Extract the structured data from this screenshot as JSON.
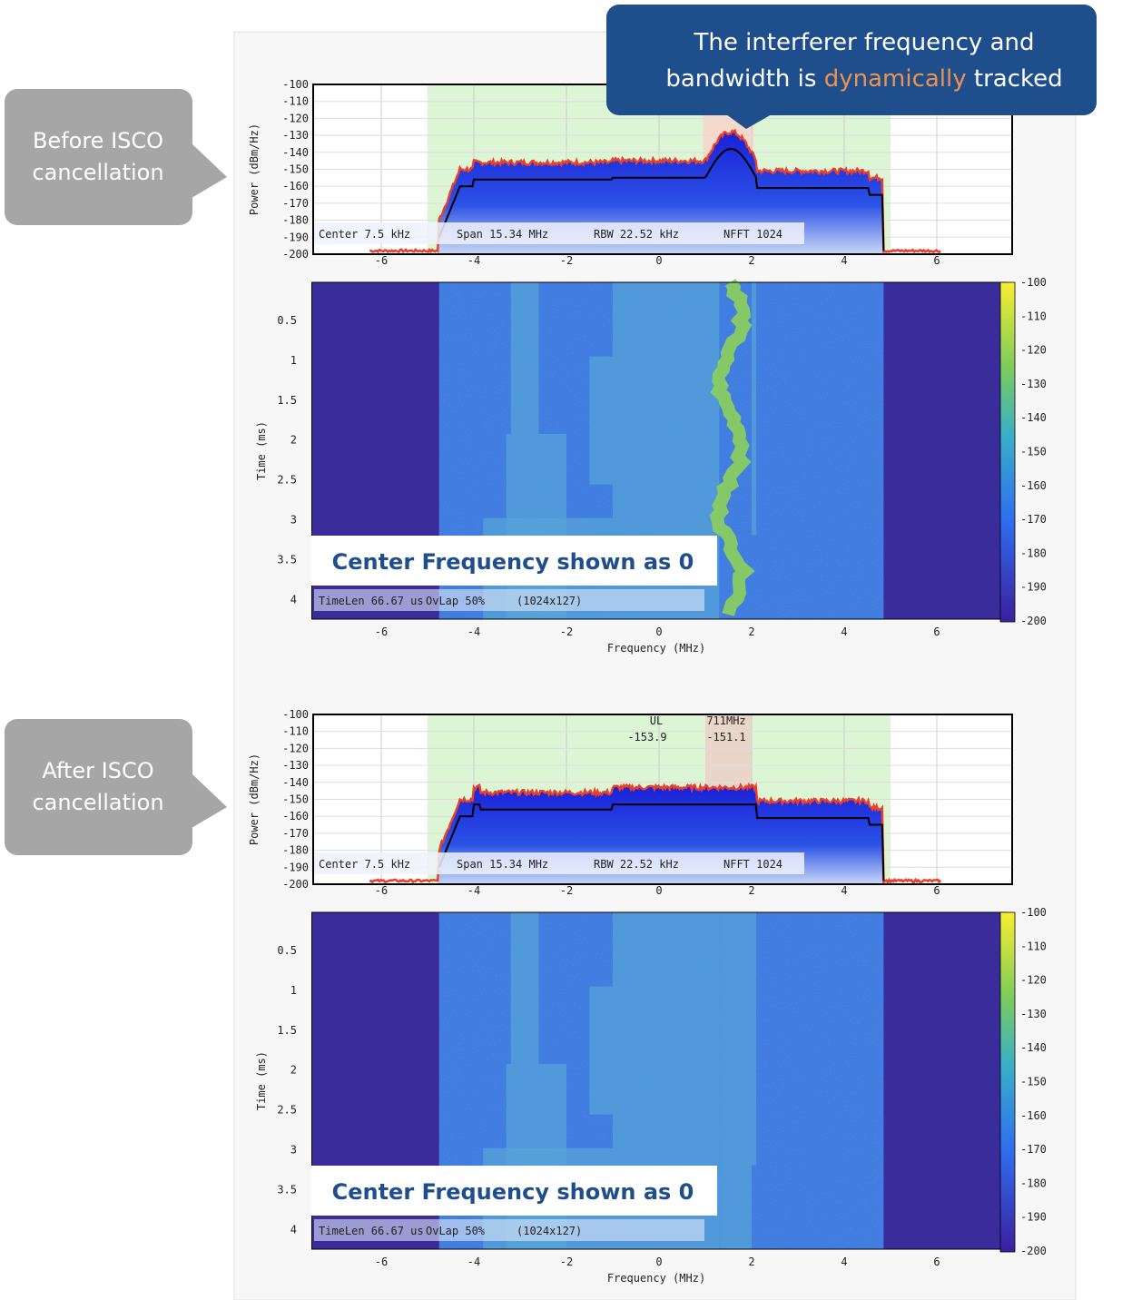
{
  "callout": {
    "line1": "The interferer frequency and",
    "line2_start": "bandwidth is",
    "highlight": "dynamically",
    "line2_end": "tracked"
  },
  "panels": [
    {
      "label": [
        "Before ISCO",
        "cancellation"
      ],
      "spectrum": {
        "y_label": "Power (dBm/Hz)",
        "y_ticks": [
          "-100",
          "-110",
          "-120",
          "-130",
          "-140",
          "-150",
          "-160",
          "-170",
          "-180",
          "-190",
          "-200"
        ],
        "x_ticks": [
          "-6",
          "-4",
          "-2",
          "0",
          "2",
          "4",
          "6"
        ],
        "info": [
          "Center 7.5 kHz",
          "Span 15.34 MHz",
          "RBW 22.52 kHz",
          "NFFT 1024"
        ]
      },
      "waterfall": {
        "y_label": "Time (ms)",
        "y_ticks": [
          "0.5",
          "1",
          "1.5",
          "2",
          "2.5",
          "3",
          "3.5",
          "4"
        ],
        "x_ticks": [
          "-6",
          "-4",
          "-2",
          "0",
          "2",
          "4",
          "6"
        ],
        "x_label": "Frequency (MHz)",
        "colorbar_ticks": [
          "-100",
          "-110",
          "-120",
          "-130",
          "-140",
          "-150",
          "-160",
          "-170",
          "-180",
          "-190",
          "-200"
        ],
        "info": [
          "TimeLen 66.67 us",
          "OvLap 50%",
          "(1024x127)"
        ],
        "overlay": "Center Frequency shown as 0"
      }
    },
    {
      "label": [
        "After ISCO",
        "cancellation"
      ],
      "spectrum": {
        "y_label": "Power (dBm/Hz)",
        "y_ticks": [
          "-100",
          "-110",
          "-120",
          "-130",
          "-140",
          "-150",
          "-160",
          "-170",
          "-180",
          "-190",
          "-200"
        ],
        "x_ticks": [
          "-6",
          "-4",
          "-2",
          "0",
          "2",
          "4",
          "6"
        ],
        "info": [
          "Center 7.5 kHz",
          "Span 15.34 MHz",
          "RBW 22.52 kHz",
          "NFFT 1024"
        ],
        "markers": {
          "labels": [
            "UL",
            "711MHz"
          ],
          "values": [
            "-153.9",
            "-151.1"
          ]
        }
      },
      "waterfall": {
        "y_label": "Time (ms)",
        "y_ticks": [
          "0.5",
          "1",
          "1.5",
          "2",
          "2.5",
          "3",
          "3.5",
          "4"
        ],
        "x_ticks": [
          "-6",
          "-4",
          "-2",
          "0",
          "2",
          "4",
          "6"
        ],
        "x_label": "Frequency (MHz)",
        "colorbar_ticks": [
          "-100",
          "-110",
          "-120",
          "-130",
          "-140",
          "-150",
          "-160",
          "-170",
          "-180",
          "-190",
          "-200"
        ],
        "info": [
          "TimeLen 66.67 us",
          "OvLap 50%",
          "(1024x127)"
        ],
        "overlay": "Center Frequency shown as 0"
      }
    }
  ]
}
